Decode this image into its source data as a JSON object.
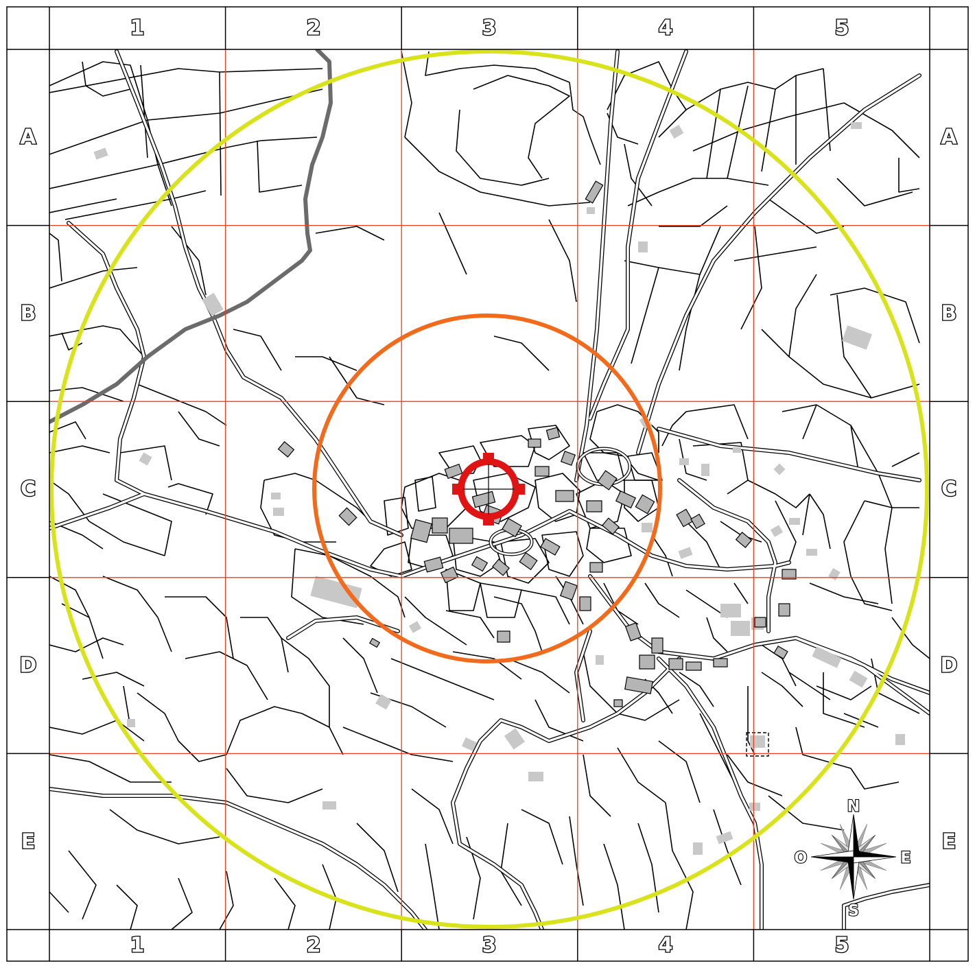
{
  "map": {
    "columns": [
      "1",
      "2",
      "3",
      "4",
      "5"
    ],
    "rows": [
      "A",
      "B",
      "C",
      "D",
      "E"
    ],
    "circles": {
      "outer_color": "#d9e31c",
      "middle_color": "#f26a1b",
      "target_color": "#e01414"
    },
    "grid_color": "#e8401c",
    "highway_color": "#6b6b6b",
    "building_color": "#b5b5b5",
    "compass": {
      "north": "N",
      "south": "S",
      "east": "E",
      "west": "O",
      "icon": "compass-rose-icon"
    },
    "target_icon": "crosshair-target-icon"
  }
}
